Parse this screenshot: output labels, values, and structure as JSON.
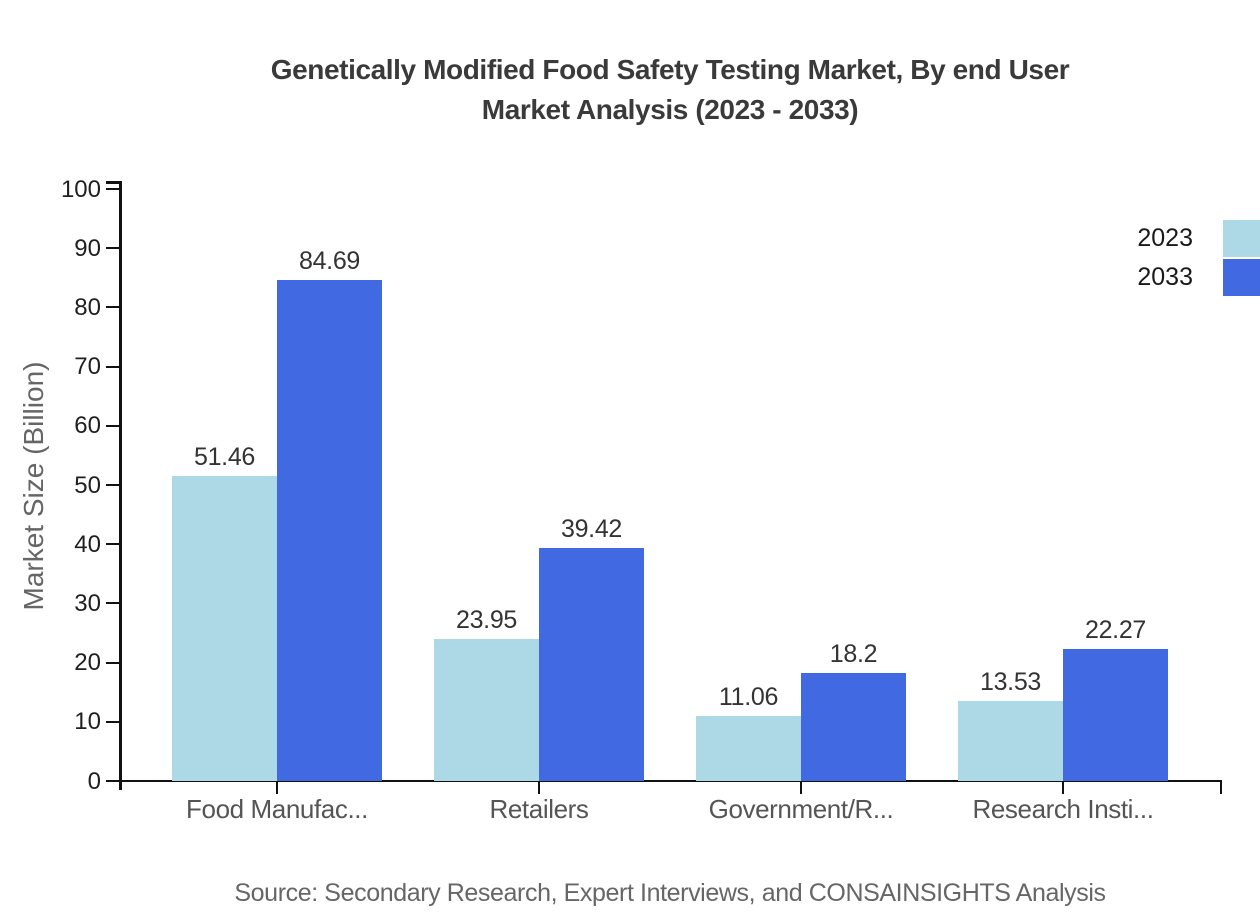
{
  "title": {
    "line1": "Genetically Modified Food Safety Testing Market, By end User",
    "line2": "Market Analysis (2023 - 2033)"
  },
  "y_axis": {
    "title": "Market Size (Billion)",
    "ticks": [
      "0",
      "10",
      "20",
      "30",
      "40",
      "50",
      "60",
      "70",
      "80",
      "90",
      "100"
    ]
  },
  "source": "Source: Secondary Research, Expert Interviews, and CONSAINSIGHTS Analysis",
  "chart_data": {
    "type": "bar",
    "title": "Genetically Modified Food Safety Testing Market, By end User Market Analysis (2023 - 2033)",
    "categories": [
      "Food Manufac...",
      "Retailers",
      "Government/R...",
      "Research Insti..."
    ],
    "series": [
      {
        "name": "2023",
        "color": "#ADD8E6",
        "values": [
          51.46,
          23.95,
          11.06,
          13.53
        ]
      },
      {
        "name": "2033",
        "color": "#4169E1",
        "values": [
          84.69,
          39.42,
          18.2,
          22.27
        ]
      }
    ],
    "xlabel": "",
    "ylabel": "Market Size (Billion)",
    "ylim": [
      0,
      100
    ],
    "grid": false,
    "legend_position": "top-right",
    "value_labels": true
  }
}
